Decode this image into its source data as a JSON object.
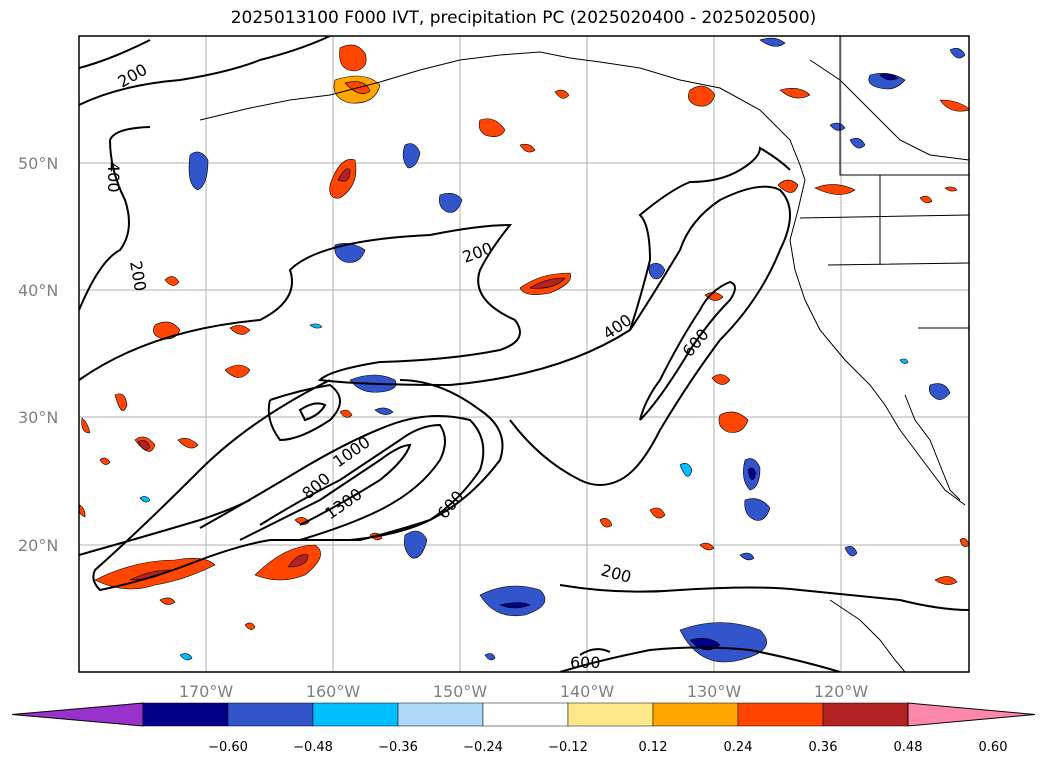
{
  "title": "2025013100 F000 IVT, precipitation PC (2025020400 - 2025020500)",
  "lat_labels": [
    "50°N",
    "40°N",
    "30°N",
    "20°N"
  ],
  "lon_labels": [
    "170°W",
    "160°W",
    "150°W",
    "140°W",
    "130°W",
    "120°W"
  ],
  "colorbar": {
    "ticks": [
      "−0.60",
      "−0.48",
      "−0.36",
      "−0.24",
      "−0.12",
      "0.12",
      "0.24",
      "0.36",
      "0.48",
      "0.60"
    ],
    "colors": [
      "#9932cc",
      "#00008b",
      "#3355cc",
      "#00bfff",
      "#add8f6",
      "#ffffff",
      "#ffe88a",
      "#ffa500",
      "#ff4500",
      "#b22222",
      "#ff88aa"
    ]
  },
  "contour_labels": [
    "200",
    "400",
    "200",
    "200",
    "400",
    "600",
    "1000",
    "800",
    "1300",
    "600",
    "200",
    "600"
  ]
}
